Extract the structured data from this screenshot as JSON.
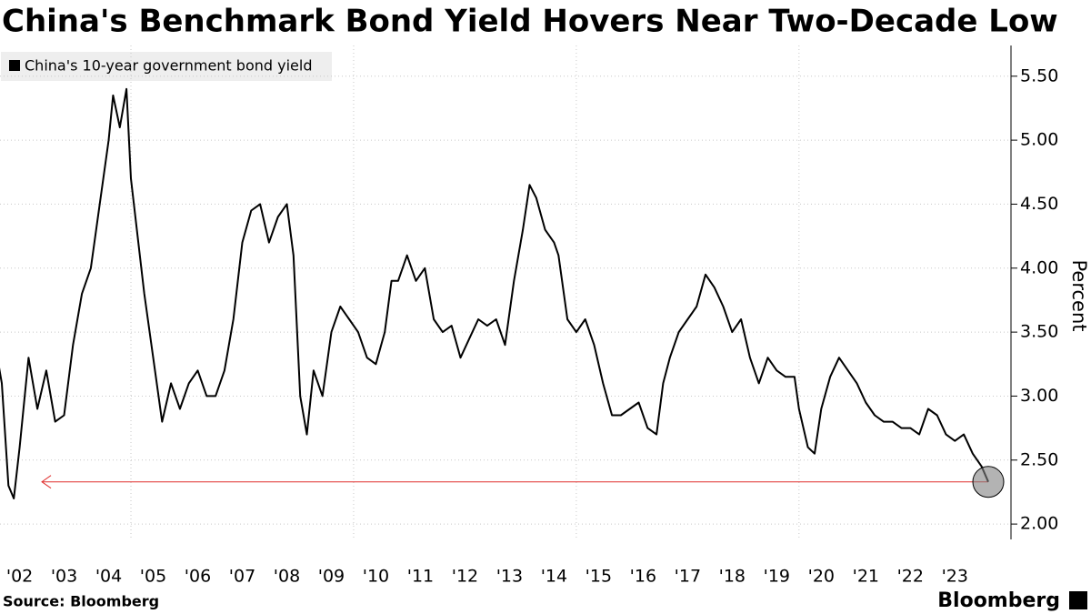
{
  "chart_data": {
    "type": "line",
    "title": "China's Benchmark Bond Yield Hovers Near Two-Decade Low",
    "y_axis_label": "Percent",
    "source": "Source: Bloomberg",
    "branding": "Bloomberg",
    "x": [
      2002.0,
      2002.1,
      2002.25,
      2002.37,
      2002.5,
      2002.7,
      2002.9,
      2003.1,
      2003.3,
      2003.5,
      2003.7,
      2003.9,
      2004.1,
      2004.3,
      2004.5,
      2004.6,
      2004.75,
      2004.9,
      2005.0,
      2005.1,
      2005.3,
      2005.5,
      2005.7,
      2005.9,
      2006.1,
      2006.3,
      2006.5,
      2006.7,
      2006.9,
      2007.1,
      2007.3,
      2007.5,
      2007.7,
      2007.9,
      2008.1,
      2008.3,
      2008.5,
      2008.65,
      2008.8,
      2008.95,
      2009.1,
      2009.3,
      2009.5,
      2009.7,
      2009.9,
      2010.1,
      2010.3,
      2010.5,
      2010.7,
      2010.85,
      2011.0,
      2011.2,
      2011.4,
      2011.6,
      2011.8,
      2012.0,
      2012.2,
      2012.4,
      2012.6,
      2012.8,
      2013.0,
      2013.2,
      2013.4,
      2013.6,
      2013.8,
      2013.95,
      2014.1,
      2014.3,
      2014.5,
      2014.6,
      2014.8,
      2015.0,
      2015.2,
      2015.4,
      2015.6,
      2015.8,
      2016.0,
      2016.2,
      2016.4,
      2016.6,
      2016.8,
      2016.95,
      2017.1,
      2017.3,
      2017.5,
      2017.7,
      2017.9,
      2018.1,
      2018.3,
      2018.5,
      2018.7,
      2018.9,
      2019.1,
      2019.3,
      2019.5,
      2019.7,
      2019.9,
      2020.0,
      2020.2,
      2020.35,
      2020.5,
      2020.7,
      2020.9,
      2021.1,
      2021.3,
      2021.5,
      2021.7,
      2021.9,
      2022.1,
      2022.3,
      2022.5,
      2022.7,
      2022.9,
      2023.1,
      2023.3,
      2023.5,
      2023.7,
      2023.9,
      2024.1,
      2024.25
    ],
    "series": [
      {
        "name": "China's 10-year government bond yield",
        "color": "#000000",
        "values": [
          3.3,
          3.1,
          2.3,
          2.2,
          2.6,
          3.3,
          2.9,
          3.2,
          2.8,
          2.85,
          3.4,
          3.8,
          4.0,
          4.5,
          5.0,
          5.35,
          5.1,
          5.4,
          4.7,
          4.4,
          3.8,
          3.3,
          2.8,
          3.1,
          2.9,
          3.1,
          3.2,
          3.0,
          3.0,
          3.2,
          3.6,
          4.2,
          4.45,
          4.5,
          4.2,
          4.4,
          4.5,
          4.1,
          3.0,
          2.7,
          3.2,
          3.0,
          3.5,
          3.7,
          3.6,
          3.5,
          3.3,
          3.25,
          3.5,
          3.9,
          3.9,
          4.1,
          3.9,
          4.0,
          3.6,
          3.5,
          3.55,
          3.3,
          3.45,
          3.6,
          3.55,
          3.6,
          3.4,
          3.9,
          4.3,
          4.65,
          4.55,
          4.3,
          4.2,
          4.1,
          3.6,
          3.5,
          3.6,
          3.4,
          3.1,
          2.85,
          2.85,
          2.9,
          2.95,
          2.75,
          2.7,
          3.1,
          3.3,
          3.5,
          3.6,
          3.7,
          3.95,
          3.85,
          3.7,
          3.5,
          3.6,
          3.3,
          3.1,
          3.3,
          3.2,
          3.15,
          3.15,
          2.9,
          2.6,
          2.55,
          2.9,
          3.15,
          3.3,
          3.2,
          3.1,
          2.95,
          2.85,
          2.8,
          2.8,
          2.75,
          2.75,
          2.7,
          2.9,
          2.85,
          2.7,
          2.65,
          2.7,
          2.55,
          2.45,
          2.33
        ]
      }
    ],
    "reference_line": {
      "value": 2.33,
      "start": 2003.0,
      "color": "#e0302f"
    },
    "xlim": [
      2002.06,
      2024.76
    ],
    "xticks": [
      {
        "value": 2002,
        "label": "'02"
      },
      {
        "value": 2003,
        "label": "'03"
      },
      {
        "value": 2004,
        "label": "'04"
      },
      {
        "value": 2005,
        "label": "'05"
      },
      {
        "value": 2006,
        "label": "'06"
      },
      {
        "value": 2007,
        "label": "'07"
      },
      {
        "value": 2008,
        "label": "'08"
      },
      {
        "value": 2009,
        "label": "'09"
      },
      {
        "value": 2010,
        "label": "'10"
      },
      {
        "value": 2011,
        "label": "'11"
      },
      {
        "value": 2012,
        "label": "'12"
      },
      {
        "value": 2013,
        "label": "'13"
      },
      {
        "value": 2014,
        "label": "'14"
      },
      {
        "value": 2015,
        "label": "'15"
      },
      {
        "value": 2016,
        "label": "'16"
      },
      {
        "value": 2017,
        "label": "'17"
      },
      {
        "value": 2018,
        "label": "'18"
      },
      {
        "value": 2019,
        "label": "'19"
      },
      {
        "value": 2020,
        "label": "'20"
      },
      {
        "value": 2021,
        "label": "'21"
      },
      {
        "value": 2022,
        "label": "'22"
      },
      {
        "value": 2023,
        "label": "'23"
      }
    ],
    "ylim": [
      1.88,
      5.74
    ],
    "yticks": [
      {
        "value": 2,
        "label": "2.00"
      },
      {
        "value": 2.5,
        "label": "2.50"
      },
      {
        "value": 3,
        "label": "3.00"
      },
      {
        "value": 3.5,
        "label": "3.50"
      },
      {
        "value": 4,
        "label": "4.00"
      },
      {
        "value": 4.5,
        "label": "4.50"
      },
      {
        "value": 5,
        "label": "5.00"
      },
      {
        "value": 5.5,
        "label": "5.50"
      }
    ],
    "grid": true
  }
}
